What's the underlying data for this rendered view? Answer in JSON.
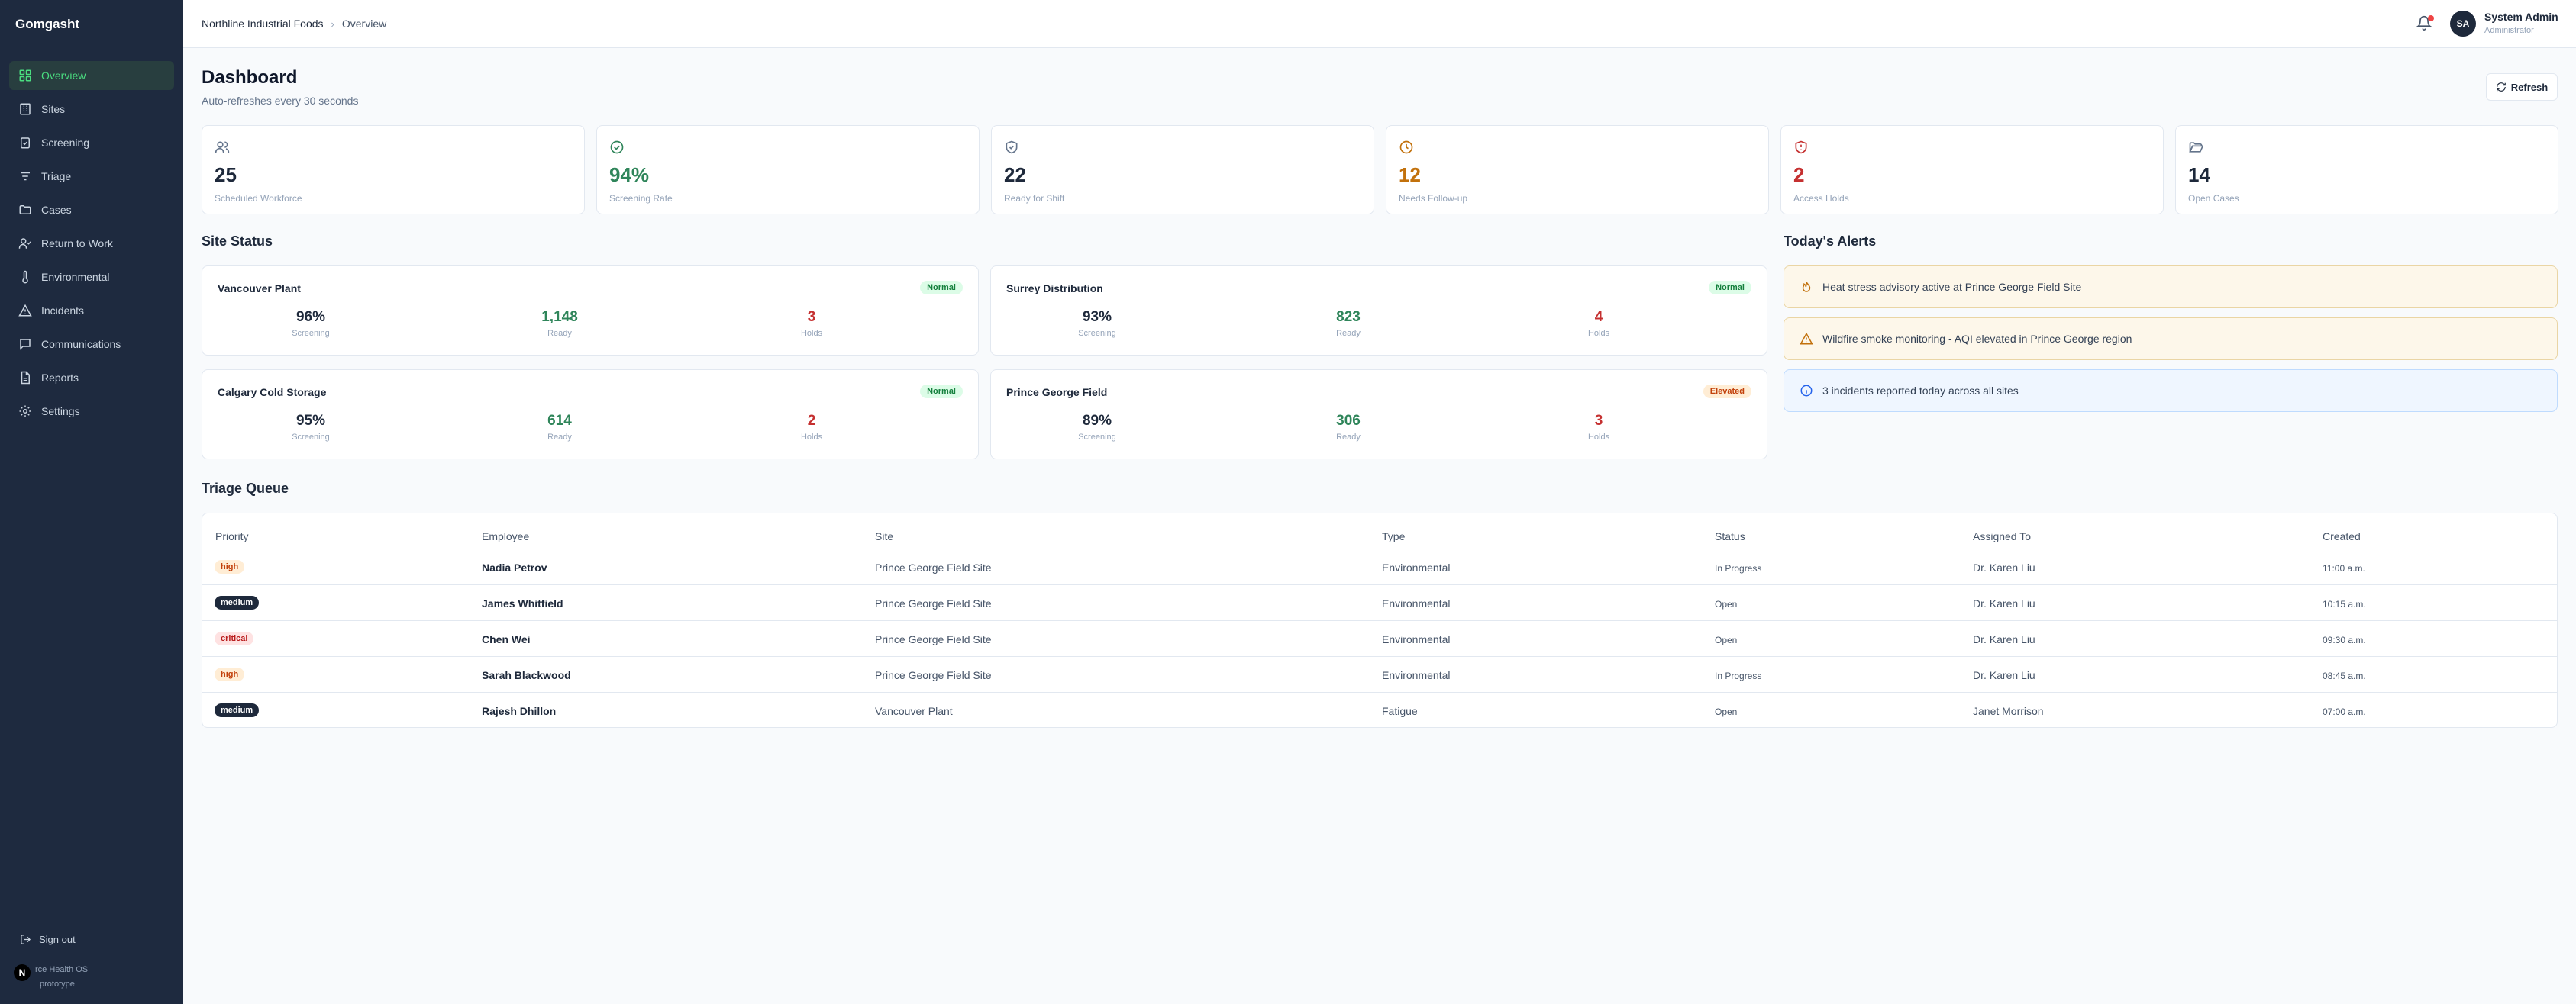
{
  "app": {
    "name": "Gomgasht"
  },
  "nav": [
    {
      "label": "Overview",
      "icon": "grid-icon",
      "active": true
    },
    {
      "label": "Sites",
      "icon": "building-icon"
    },
    {
      "label": "Screening",
      "icon": "clipboard-check-icon"
    },
    {
      "label": "Triage",
      "icon": "filter-icon"
    },
    {
      "label": "Cases",
      "icon": "folder-icon"
    },
    {
      "label": "Return to Work",
      "icon": "user-check-icon"
    },
    {
      "label": "Environmental",
      "icon": "thermometer-icon"
    },
    {
      "label": "Incidents",
      "icon": "alert-triangle-icon"
    },
    {
      "label": "Communications",
      "icon": "message-icon"
    },
    {
      "label": "Reports",
      "icon": "file-icon"
    },
    {
      "label": "Settings",
      "icon": "gear-icon"
    }
  ],
  "sidebar_footer": {
    "sign_out": "Sign out",
    "line1": "rce Health OS",
    "line2": "prototype",
    "badge": "N"
  },
  "topbar": {
    "breadcrumb": [
      "Northline Industrial Foods",
      "Overview"
    ],
    "user_name": "System Admin",
    "user_role": "Administrator",
    "avatar": "SA"
  },
  "header": {
    "title": "Dashboard",
    "subtitle": "Auto-refreshes every 30 seconds",
    "refresh": "Refresh"
  },
  "stats": [
    {
      "value": "25",
      "label": "Scheduled Workforce",
      "icon": "users-icon",
      "color": "#1e293b"
    },
    {
      "value": "94%",
      "label": "Screening Rate",
      "icon": "check-circle-icon",
      "color": "#2f855a"
    },
    {
      "value": "22",
      "label": "Ready for Shift",
      "icon": "shield-check-icon",
      "color": "#1e293b"
    },
    {
      "value": "12",
      "label": "Needs Follow-up",
      "icon": "clock-icon",
      "color": "#c2710c"
    },
    {
      "value": "2",
      "label": "Access Holds",
      "icon": "shield-alert-icon",
      "color": "#c53030"
    },
    {
      "value": "14",
      "label": "Open Cases",
      "icon": "folder-open-icon",
      "color": "#1e293b"
    }
  ],
  "site_status": {
    "title": "Site Status",
    "metric_labels": [
      "Screening",
      "Ready",
      "Holds"
    ],
    "sites": [
      {
        "name": "Vancouver Plant",
        "badge": "Normal",
        "badge_type": "normal",
        "screening": "96%",
        "ready": "1,148",
        "holds": "3"
      },
      {
        "name": "Surrey Distribution",
        "badge": "Normal",
        "badge_type": "normal",
        "screening": "93%",
        "ready": "823",
        "holds": "4"
      },
      {
        "name": "Calgary Cold Storage",
        "badge": "Normal",
        "badge_type": "normal",
        "screening": "95%",
        "ready": "614",
        "holds": "2"
      },
      {
        "name": "Prince George Field",
        "badge": "Elevated",
        "badge_type": "elev",
        "screening": "89%",
        "ready": "306",
        "holds": "3"
      }
    ]
  },
  "alerts": {
    "title": "Today's Alerts",
    "items": [
      {
        "text": "Heat stress advisory active at Prince George Field Site",
        "icon": "flame-icon",
        "type": "warn"
      },
      {
        "text": "Wildfire smoke monitoring - AQI elevated in Prince George region",
        "icon": "warning-triangle-icon",
        "type": "warn"
      },
      {
        "text": "3 incidents reported today across all sites",
        "icon": "info-icon",
        "type": "info"
      }
    ]
  },
  "triage": {
    "title": "Triage Queue",
    "columns": [
      "Priority",
      "Employee",
      "Site",
      "Type",
      "Status",
      "Assigned To",
      "Created"
    ],
    "rows": [
      {
        "priority": "high",
        "employee": "Nadia Petrov",
        "site": "Prince George Field Site",
        "type": "Environmental",
        "status": "In Progress",
        "assigned": "Dr. Karen Liu",
        "created": "11:00 a.m."
      },
      {
        "priority": "medium",
        "employee": "James Whitfield",
        "site": "Prince George Field Site",
        "type": "Environmental",
        "status": "Open",
        "assigned": "Dr. Karen Liu",
        "created": "10:15 a.m."
      },
      {
        "priority": "critical",
        "employee": "Chen Wei",
        "site": "Prince George Field Site",
        "type": "Environmental",
        "status": "Open",
        "assigned": "Dr. Karen Liu",
        "created": "09:30 a.m."
      },
      {
        "priority": "high",
        "employee": "Sarah Blackwood",
        "site": "Prince George Field Site",
        "type": "Environmental",
        "status": "In Progress",
        "assigned": "Dr. Karen Liu",
        "created": "08:45 a.m."
      },
      {
        "priority": "medium",
        "employee": "Rajesh Dhillon",
        "site": "Vancouver Plant",
        "type": "Fatigue",
        "status": "Open",
        "assigned": "Janet Morrison",
        "created": "07:00 a.m."
      }
    ]
  }
}
